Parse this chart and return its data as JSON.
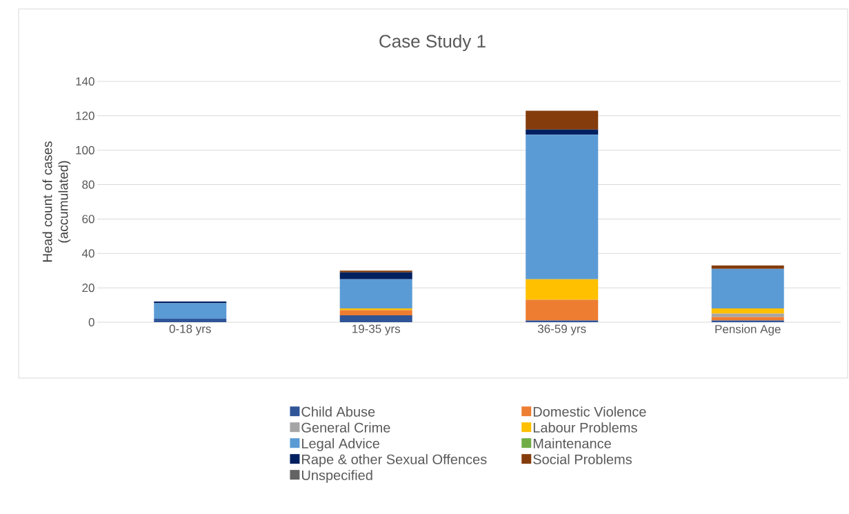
{
  "chart_data": {
    "type": "bar",
    "stacked": true,
    "title": "Case Study 1",
    "ylabel": "Head count of cases (accumulated)",
    "categories": [
      "0-18 yrs",
      "19-35 yrs",
      "36-59 yrs",
      "Pension Age"
    ],
    "series": [
      {
        "name": "Child Abuse",
        "color": "#2f5597",
        "values": [
          2,
          4,
          1,
          1
        ]
      },
      {
        "name": "Domestic Violence",
        "color": "#ed7d31",
        "values": [
          0,
          3,
          12,
          2
        ]
      },
      {
        "name": "General Crime",
        "color": "#a5a5a5",
        "values": [
          0,
          0,
          0,
          2
        ]
      },
      {
        "name": "Labour Problems",
        "color": "#ffc000",
        "values": [
          0,
          1,
          12,
          3
        ]
      },
      {
        "name": "Legal Advice",
        "color": "#5b9bd5",
        "values": [
          9,
          17,
          84,
          23
        ]
      },
      {
        "name": "Maintenance",
        "color": "#70ad47",
        "values": [
          0,
          0,
          0,
          0
        ]
      },
      {
        "name": "Rape & other Sexual Offences",
        "color": "#002060",
        "values": [
          1,
          4,
          3,
          0
        ]
      },
      {
        "name": "Social Problems",
        "color": "#843c0c",
        "values": [
          0,
          1,
          11,
          2
        ]
      },
      {
        "name": "Unspecified",
        "color": "#636363",
        "values": [
          0,
          0,
          0,
          0
        ]
      }
    ],
    "ylim": [
      0,
      140
    ],
    "yticks": [
      0,
      20,
      40,
      60,
      80,
      100,
      120,
      140
    ],
    "grid": "y",
    "legend": "bottom"
  }
}
